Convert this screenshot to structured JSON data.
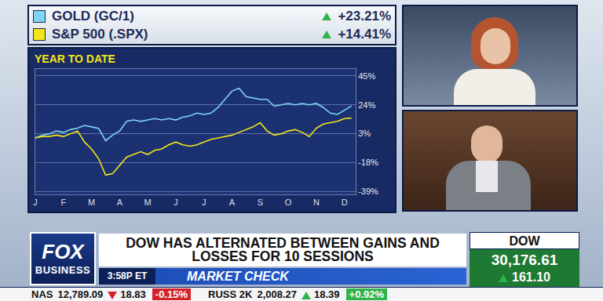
{
  "chart_data": {
    "type": "line",
    "title": "YEAR TO DATE",
    "x": [
      0,
      0.25,
      0.5,
      0.75,
      1,
      1.25,
      1.5,
      1.75,
      2,
      2.25,
      2.5,
      2.75,
      3,
      3.25,
      3.5,
      3.75,
      4,
      4.25,
      4.5,
      4.75,
      5,
      5.25,
      5.5,
      5.75,
      6,
      6.25,
      6.5,
      6.75,
      7,
      7.25,
      7.5,
      7.75,
      8,
      8.25,
      8.5,
      8.75,
      9,
      9.25,
      9.5,
      9.75,
      10,
      10.25,
      10.5,
      10.75,
      11,
      11.25
    ],
    "xlim": [
      0,
      11.4
    ],
    "xticks": [
      {
        "value": 0,
        "label": "J"
      },
      {
        "value": 1,
        "label": "F"
      },
      {
        "value": 2,
        "label": "M"
      },
      {
        "value": 3,
        "label": "A"
      },
      {
        "value": 4,
        "label": "M"
      },
      {
        "value": 5,
        "label": "J"
      },
      {
        "value": 6,
        "label": "J"
      },
      {
        "value": 7,
        "label": "A"
      },
      {
        "value": 8,
        "label": "S"
      },
      {
        "value": 9,
        "label": "O"
      },
      {
        "value": 10,
        "label": "N"
      },
      {
        "value": 11,
        "label": "D"
      }
    ],
    "ylim": [
      -41,
      50
    ],
    "yticks": [
      {
        "value": 45,
        "label": "45%"
      },
      {
        "value": 24,
        "label": "24%"
      },
      {
        "value": 3,
        "label": "3%"
      },
      {
        "value": -18,
        "label": "-18%"
      },
      {
        "value": -39,
        "label": "-39%"
      }
    ],
    "grid": true,
    "series": [
      {
        "name": "GOLD (GC/1)",
        "color": "#7fd4f2",
        "ytd_change": "+23.21%",
        "direction": "up",
        "values": [
          0,
          2,
          3,
          5,
          4,
          6,
          7,
          9,
          8,
          7,
          -2,
          2,
          5,
          12,
          13,
          12,
          13,
          14,
          13,
          14,
          13,
          15,
          16,
          18,
          17,
          18,
          22,
          28,
          34,
          36,
          30,
          29,
          28,
          28,
          23,
          24,
          25,
          24,
          25,
          24,
          25,
          22,
          18,
          17,
          20,
          23.21
        ]
      },
      {
        "name": "S&P 500 (.SPX)",
        "color": "#f3e51a",
        "ytd_change": "+14.41%",
        "direction": "up",
        "values": [
          0,
          1,
          1,
          2,
          1,
          3,
          5,
          -3,
          -8,
          -15,
          -27,
          -26,
          -20,
          -14,
          -12,
          -10,
          -12,
          -9,
          -8,
          -5,
          -3,
          -5,
          -6,
          -5,
          -3,
          -1,
          0,
          1,
          2,
          4,
          6,
          8,
          11,
          5,
          2,
          3,
          5,
          6,
          4,
          1,
          7,
          10,
          11,
          12,
          14,
          14.41
        ]
      }
    ]
  },
  "screen": {
    "logo": [
      "FOX",
      "BUSINESS"
    ],
    "headline": "DOW HAS ALTERNATED BETWEEN GAINS AND LOSSES FOR 10 SESSIONS",
    "time": "3:58P ET",
    "segment": "MARKET CHECK",
    "index_box": {
      "name": "DOW",
      "value": "30,176.61",
      "change": "161.10",
      "direction": "up"
    },
    "ticker": [
      {
        "name": "NAS",
        "value": "12,789.09",
        "change": "18.83",
        "pct": "-0.15%",
        "direction": "down"
      },
      {
        "name": "RUSS 2K",
        "value": "2,008.27",
        "change": "18.39",
        "pct": "+0.92%",
        "direction": "up"
      }
    ]
  }
}
